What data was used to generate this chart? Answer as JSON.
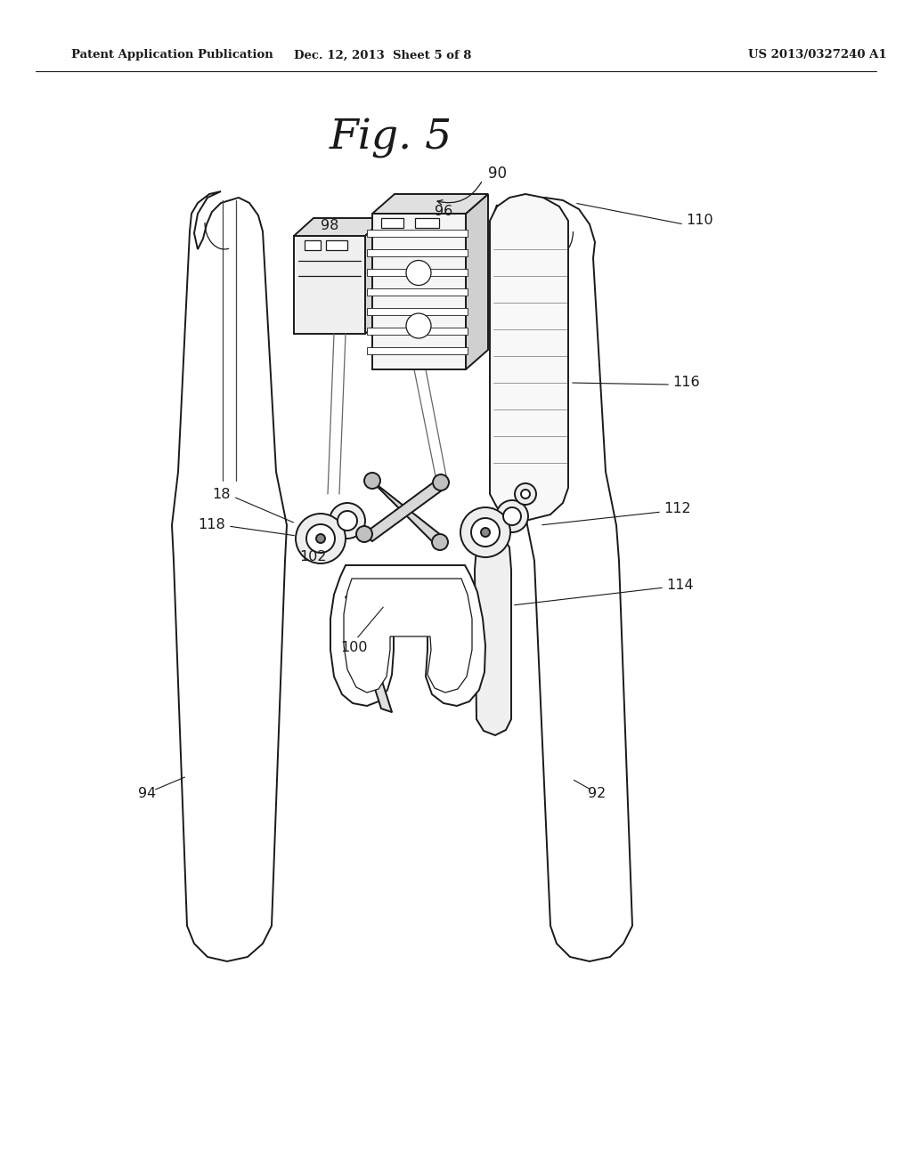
{
  "header_left": "Patent Application Publication",
  "header_mid": "Dec. 12, 2013  Sheet 5 of 8",
  "header_right": "US 2013/0327240 A1",
  "fig_title": "Fig. 5",
  "bg_color": "#ffffff",
  "line_color": "#1a1a1a",
  "label_color": "#1a1a1a",
  "lw_main": 1.4,
  "lw_thin": 0.9,
  "lw_extra": 0.6
}
